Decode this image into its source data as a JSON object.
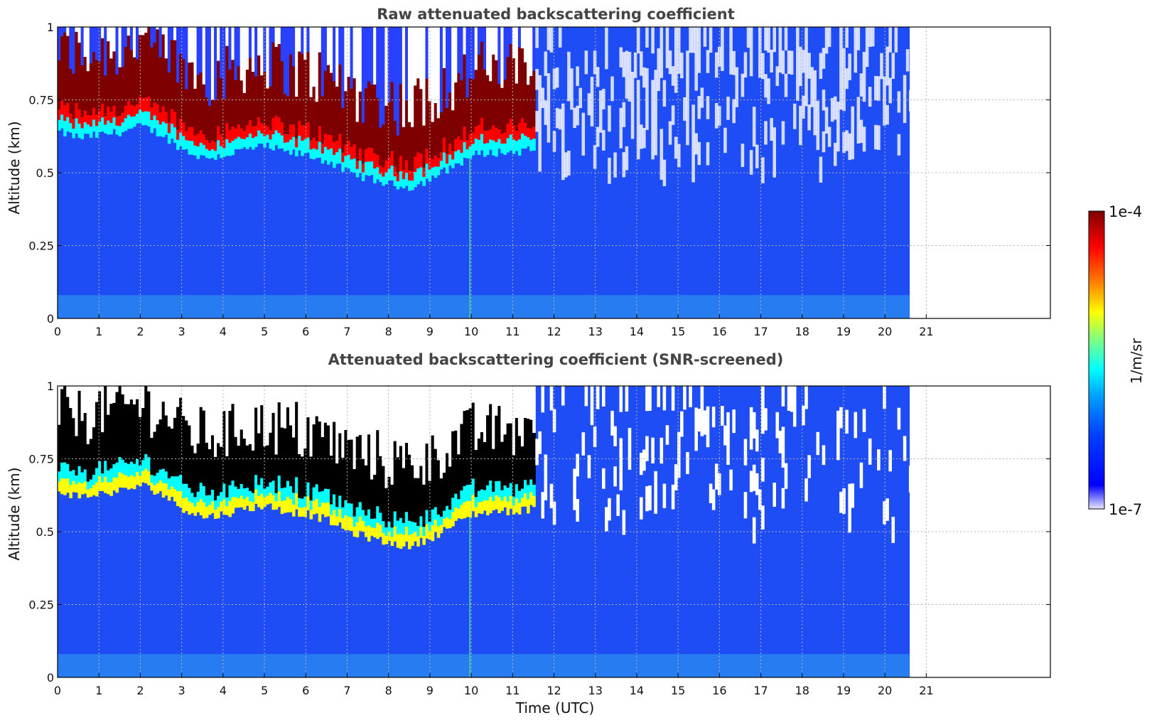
{
  "chart_data": [
    {
      "type": "heatmap",
      "title": "Raw attenuated backscattering coefficient",
      "ylabel": "Altitude (km)",
      "xlabel": "",
      "xlim": [
        0,
        24
      ],
      "ylim": [
        0,
        1
      ],
      "data_xlim": [
        0,
        20.6
      ],
      "x_ticks": [
        "0",
        "1",
        "2",
        "3",
        "4",
        "5",
        "6",
        "7",
        "8",
        "9",
        "10",
        "11",
        "12",
        "13",
        "14",
        "15",
        "16",
        "17",
        "18",
        "19",
        "20",
        "21"
      ],
      "y_ticks": [
        "0",
        "0.25",
        "0.5",
        "0.75",
        "1"
      ],
      "grid": true,
      "screened": false,
      "cloud_layer": {
        "time": [
          0,
          0.5,
          1,
          1.5,
          2,
          2.5,
          3,
          3.5,
          4,
          4.5,
          5,
          5.5,
          6,
          6.5,
          7,
          7.5,
          8,
          8.5,
          9,
          9.5,
          10,
          10.5,
          11,
          11.5
        ],
        "base_km": [
          0.64,
          0.62,
          0.63,
          0.64,
          0.66,
          0.63,
          0.58,
          0.55,
          0.56,
          0.58,
          0.59,
          0.57,
          0.56,
          0.54,
          0.5,
          0.48,
          0.46,
          0.45,
          0.48,
          0.52,
          0.56,
          0.57,
          0.57,
          0.58
        ]
      }
    },
    {
      "type": "heatmap",
      "title": "Attenuated backscattering coefficient (SNR-screened)",
      "ylabel": "Altitude (km)",
      "xlabel": "Time (UTC)",
      "xlim": [
        0,
        24
      ],
      "ylim": [
        0,
        1
      ],
      "data_xlim": [
        0,
        20.6
      ],
      "x_ticks": [
        "0",
        "1",
        "2",
        "3",
        "4",
        "5",
        "6",
        "7",
        "8",
        "9",
        "10",
        "11",
        "12",
        "13",
        "14",
        "15",
        "16",
        "17",
        "18",
        "19",
        "20",
        "21"
      ],
      "y_ticks": [
        "0",
        "0.25",
        "0.5",
        "0.75",
        "1"
      ],
      "grid": true,
      "screened": true,
      "cloud_layer": {
        "time": [
          0,
          0.5,
          1,
          1.5,
          2,
          2.5,
          3,
          3.5,
          4,
          4.5,
          5,
          5.5,
          6,
          6.5,
          7,
          7.5,
          8,
          8.5,
          9,
          9.5,
          10,
          10.5,
          11,
          11.5
        ],
        "base_km": [
          0.64,
          0.62,
          0.63,
          0.64,
          0.66,
          0.63,
          0.58,
          0.55,
          0.56,
          0.58,
          0.59,
          0.57,
          0.56,
          0.54,
          0.5,
          0.48,
          0.46,
          0.45,
          0.48,
          0.52,
          0.56,
          0.57,
          0.57,
          0.58
        ]
      }
    }
  ],
  "colorbar": {
    "label": "1/m/sr",
    "max_label": "1e-4",
    "min_label": "1e-7",
    "colormap": [
      "#e8e8ff",
      "#0000ff",
      "#0040ff",
      "#00a0ff",
      "#00ffff",
      "#80ff80",
      "#ffff00",
      "#ff8000",
      "#ff0000",
      "#7f0000"
    ]
  },
  "colors": {
    "background_aerosol": "#1e4cf5",
    "near_surface": "#2b8cf0",
    "cloud_core": "#a00000",
    "screened_cloud_core": "#000000",
    "frame": "#000000",
    "grid": "#b4b4b4"
  }
}
